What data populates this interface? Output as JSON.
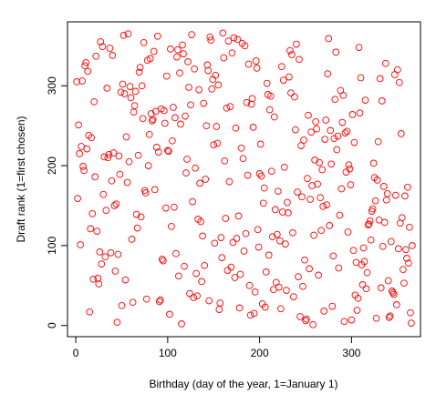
{
  "chart_data": {
    "type": "scatter",
    "title": "",
    "xlabel": "Birthday (day of the year, 1=January 1)",
    "ylabel": "Draft rank (1=first chosen)",
    "xlim": [
      -9,
      375
    ],
    "ylim": [
      -14,
      380
    ],
    "x_ticks": [
      0,
      100,
      200,
      300
    ],
    "y_ticks": [
      0,
      100,
      200,
      300
    ],
    "x_tick_labels": [
      "0",
      "100",
      "200",
      "300"
    ],
    "y_tick_labels": [
      "0",
      "100",
      "200",
      "300"
    ],
    "marker": "open-circle",
    "marker_color": "#ff0000",
    "grid": false,
    "points": [
      [
        1,
        305
      ],
      [
        2,
        159
      ],
      [
        3,
        251
      ],
      [
        4,
        215
      ],
      [
        5,
        101
      ],
      [
        6,
        224
      ],
      [
        7,
        306
      ],
      [
        8,
        199
      ],
      [
        9,
        194
      ],
      [
        10,
        325
      ],
      [
        11,
        329
      ],
      [
        12,
        221
      ],
      [
        13,
        318
      ],
      [
        14,
        238
      ],
      [
        15,
        17
      ],
      [
        16,
        121
      ],
      [
        17,
        235
      ],
      [
        18,
        140
      ],
      [
        19,
        58
      ],
      [
        20,
        280
      ],
      [
        21,
        186
      ],
      [
        22,
        337
      ],
      [
        23,
        118
      ],
      [
        24,
        59
      ],
      [
        25,
        52
      ],
      [
        26,
        92
      ],
      [
        27,
        355
      ],
      [
        28,
        77
      ],
      [
        29,
        349
      ],
      [
        30,
        164
      ],
      [
        31,
        211
      ],
      [
        32,
        86
      ],
      [
        33,
        144
      ],
      [
        34,
        297
      ],
      [
        35,
        210
      ],
      [
        36,
        214
      ],
      [
        37,
        347
      ],
      [
        38,
        91
      ],
      [
        39,
        181
      ],
      [
        40,
        338
      ],
      [
        41,
        216
      ],
      [
        42,
        150
      ],
      [
        43,
        68
      ],
      [
        44,
        152
      ],
      [
        45,
        4
      ],
      [
        46,
        89
      ],
      [
        47,
        212
      ],
      [
        48,
        189
      ],
      [
        49,
        292
      ],
      [
        50,
        25
      ],
      [
        51,
        302
      ],
      [
        52,
        363
      ],
      [
        53,
        290
      ],
      [
        54,
        57
      ],
      [
        55,
        236
      ],
      [
        56,
        179
      ],
      [
        57,
        365
      ],
      [
        58,
        205
      ],
      [
        59,
        299
      ],
      [
        60,
        285
      ],
      [
        61,
        108
      ],
      [
        62,
        29
      ],
      [
        63,
        267
      ],
      [
        64,
        275
      ],
      [
        65,
        293
      ],
      [
        66,
        139
      ],
      [
        67,
        122
      ],
      [
        68,
        213
      ],
      [
        69,
        317
      ],
      [
        70,
        323
      ],
      [
        71,
        136
      ],
      [
        72,
        300
      ],
      [
        73,
        259
      ],
      [
        74,
        354
      ],
      [
        75,
        169
      ],
      [
        76,
        166
      ],
      [
        77,
        33
      ],
      [
        78,
        332
      ],
      [
        79,
        200
      ],
      [
        80,
        239
      ],
      [
        81,
        334
      ],
      [
        82,
        265
      ],
      [
        83,
        256
      ],
      [
        84,
        258
      ],
      [
        85,
        343
      ],
      [
        86,
        170
      ],
      [
        87,
        268
      ],
      [
        88,
        223
      ],
      [
        89,
        362
      ],
      [
        90,
        217
      ],
      [
        91,
        30
      ],
      [
        92,
        32
      ],
      [
        93,
        271
      ],
      [
        94,
        83
      ],
      [
        95,
        81
      ],
      [
        96,
        269
      ],
      [
        97,
        253
      ],
      [
        98,
        147
      ],
      [
        99,
        312
      ],
      [
        100,
        219
      ],
      [
        101,
        218
      ],
      [
        102,
        14
      ],
      [
        103,
        346
      ],
      [
        104,
        124
      ],
      [
        105,
        231
      ],
      [
        106,
        273
      ],
      [
        107,
        148
      ],
      [
        108,
        260
      ],
      [
        109,
        90
      ],
      [
        110,
        336
      ],
      [
        111,
        345
      ],
      [
        112,
        62
      ],
      [
        113,
        316
      ],
      [
        114,
        252
      ],
      [
        115,
        2
      ],
      [
        116,
        351
      ],
      [
        117,
        340
      ],
      [
        118,
        74
      ],
      [
        119,
        262
      ],
      [
        120,
        191
      ],
      [
        121,
        208
      ],
      [
        122,
        330
      ],
      [
        123,
        298
      ],
      [
        124,
        40
      ],
      [
        125,
        276
      ],
      [
        126,
        364
      ],
      [
        127,
        155
      ],
      [
        128,
        35
      ],
      [
        129,
        321
      ],
      [
        130,
        197
      ],
      [
        131,
        65
      ],
      [
        132,
        37
      ],
      [
        133,
        133
      ],
      [
        134,
        295
      ],
      [
        135,
        178
      ],
      [
        136,
        130
      ],
      [
        137,
        55
      ],
      [
        138,
        112
      ],
      [
        139,
        278
      ],
      [
        140,
        75
      ],
      [
        141,
        183
      ],
      [
        142,
        250
      ],
      [
        143,
        326
      ],
      [
        144,
        319
      ],
      [
        145,
        31
      ],
      [
        146,
        361
      ],
      [
        147,
        357
      ],
      [
        148,
        296
      ],
      [
        149,
        308
      ],
      [
        150,
        226
      ],
      [
        151,
        103
      ],
      [
        152,
        313
      ],
      [
        153,
        249
      ],
      [
        154,
        228
      ],
      [
        155,
        301
      ],
      [
        156,
        20
      ],
      [
        157,
        28
      ],
      [
        158,
        110
      ],
      [
        159,
        85
      ],
      [
        160,
        366
      ],
      [
        161,
        335
      ],
      [
        162,
        206
      ],
      [
        163,
        134
      ],
      [
        164,
        272
      ],
      [
        165,
        69
      ],
      [
        166,
        356
      ],
      [
        167,
        180
      ],
      [
        168,
        274
      ],
      [
        169,
        73
      ],
      [
        170,
        341
      ],
      [
        171,
        104
      ],
      [
        172,
        360
      ],
      [
        173,
        60
      ],
      [
        174,
        247
      ],
      [
        175,
        109
      ],
      [
        176,
        358
      ],
      [
        177,
        137
      ],
      [
        178,
        22
      ],
      [
        179,
        64
      ],
      [
        180,
        222
      ],
      [
        181,
        353
      ],
      [
        182,
        209
      ],
      [
        183,
        93
      ],
      [
        184,
        350
      ],
      [
        185,
        115
      ],
      [
        186,
        279
      ],
      [
        187,
        188
      ],
      [
        188,
        327
      ],
      [
        189,
        50
      ],
      [
        190,
        13
      ],
      [
        191,
        277
      ],
      [
        192,
        284
      ],
      [
        193,
        248
      ],
      [
        194,
        15
      ],
      [
        195,
        42
      ],
      [
        196,
        331
      ],
      [
        197,
        322
      ],
      [
        198,
        120
      ],
      [
        199,
        98
      ],
      [
        200,
        190
      ],
      [
        201,
        227
      ],
      [
        202,
        187
      ],
      [
        203,
        27
      ],
      [
        204,
        153
      ],
      [
        205,
        172
      ],
      [
        206,
        23
      ],
      [
        207,
        67
      ],
      [
        208,
        303
      ],
      [
        209,
        289
      ],
      [
        210,
        88
      ],
      [
        211,
        270
      ],
      [
        212,
        287
      ],
      [
        213,
        193
      ],
      [
        214,
        111
      ],
      [
        215,
        45
      ],
      [
        216,
        261
      ],
      [
        217,
        145
      ],
      [
        218,
        54
      ],
      [
        219,
        114
      ],
      [
        220,
        168
      ],
      [
        221,
        48
      ],
      [
        222,
        106
      ],
      [
        223,
        21
      ],
      [
        224,
        324
      ],
      [
        225,
        142
      ],
      [
        226,
        307
      ],
      [
        227,
        198
      ],
      [
        228,
        102
      ],
      [
        229,
        44
      ],
      [
        230,
        154
      ],
      [
        231,
        141
      ],
      [
        232,
        311
      ],
      [
        233,
        344
      ],
      [
        234,
        291
      ],
      [
        235,
        339
      ],
      [
        236,
        116
      ],
      [
        237,
        36
      ],
      [
        238,
        286
      ],
      [
        239,
        245
      ],
      [
        240,
        352
      ],
      [
        241,
        167
      ],
      [
        242,
        61
      ],
      [
        243,
        333
      ],
      [
        244,
        11
      ],
      [
        245,
        225
      ],
      [
        246,
        161
      ],
      [
        247,
        49
      ],
      [
        248,
        232
      ],
      [
        249,
        82
      ],
      [
        250,
        6
      ],
      [
        251,
        8
      ],
      [
        252,
        184
      ],
      [
        253,
        263
      ],
      [
        254,
        71
      ],
      [
        255,
        158
      ],
      [
        256,
        242
      ],
      [
        257,
        175
      ],
      [
        258,
        1
      ],
      [
        259,
        113
      ],
      [
        260,
        207
      ],
      [
        261,
        255
      ],
      [
        262,
        246
      ],
      [
        263,
        177
      ],
      [
        264,
        63
      ],
      [
        265,
        204
      ],
      [
        266,
        160
      ],
      [
        267,
        119
      ],
      [
        268,
        195
      ],
      [
        269,
        149
      ],
      [
        270,
        18
      ],
      [
        271,
        233
      ],
      [
        272,
        257
      ],
      [
        273,
        151
      ],
      [
        274,
        315
      ],
      [
        275,
        359
      ],
      [
        276,
        125
      ],
      [
        277,
        244
      ],
      [
        278,
        202
      ],
      [
        279,
        24
      ],
      [
        280,
        87
      ],
      [
        281,
        234
      ],
      [
        282,
        283
      ],
      [
        283,
        342
      ],
      [
        284,
        220
      ],
      [
        285,
        237
      ],
      [
        286,
        72
      ],
      [
        287,
        138
      ],
      [
        288,
        294
      ],
      [
        289,
        171
      ],
      [
        290,
        254
      ],
      [
        291,
        288
      ],
      [
        292,
        5
      ],
      [
        293,
        241
      ],
      [
        294,
        192
      ],
      [
        295,
        243
      ],
      [
        296,
        117
      ],
      [
        297,
        201
      ],
      [
        298,
        196
      ],
      [
        299,
        176
      ],
      [
        300,
        7
      ],
      [
        301,
        264
      ],
      [
        302,
        94
      ],
      [
        303,
        229
      ],
      [
        304,
        38
      ],
      [
        305,
        79
      ],
      [
        306,
        19
      ],
      [
        307,
        34
      ],
      [
        308,
        348
      ],
      [
        309,
        266
      ],
      [
        310,
        310
      ],
      [
        311,
        76
      ],
      [
        312,
        51
      ],
      [
        313,
        97
      ],
      [
        314,
        80
      ],
      [
        315,
        282
      ],
      [
        316,
        46
      ],
      [
        317,
        66
      ],
      [
        318,
        126
      ],
      [
        319,
        127
      ],
      [
        320,
        131
      ],
      [
        321,
        107
      ],
      [
        322,
        143
      ],
      [
        323,
        146
      ],
      [
        324,
        203
      ],
      [
        325,
        185
      ],
      [
        326,
        156
      ],
      [
        327,
        9
      ],
      [
        328,
        182
      ],
      [
        329,
        230
      ],
      [
        330,
        132
      ],
      [
        331,
        309
      ],
      [
        332,
        47
      ],
      [
        333,
        281
      ],
      [
        334,
        99
      ],
      [
        335,
        174
      ],
      [
        336,
        129
      ],
      [
        337,
        328
      ],
      [
        338,
        157
      ],
      [
        339,
        165
      ],
      [
        340,
        56
      ],
      [
        341,
        10
      ],
      [
        342,
        12
      ],
      [
        343,
        105
      ],
      [
        344,
        43
      ],
      [
        345,
        41
      ],
      [
        346,
        39
      ],
      [
        347,
        314
      ],
      [
        348,
        163
      ],
      [
        349,
        26
      ],
      [
        350,
        320
      ],
      [
        351,
        96
      ],
      [
        352,
        304
      ],
      [
        353,
        128
      ],
      [
        354,
        240
      ],
      [
        355,
        135
      ],
      [
        356,
        70
      ],
      [
        357,
        53
      ],
      [
        358,
        162
      ],
      [
        359,
        95
      ],
      [
        360,
        84
      ],
      [
        361,
        173
      ],
      [
        362,
        78
      ],
      [
        363,
        123
      ],
      [
        364,
        16
      ],
      [
        365,
        3
      ],
      [
        366,
        100
      ]
    ]
  }
}
